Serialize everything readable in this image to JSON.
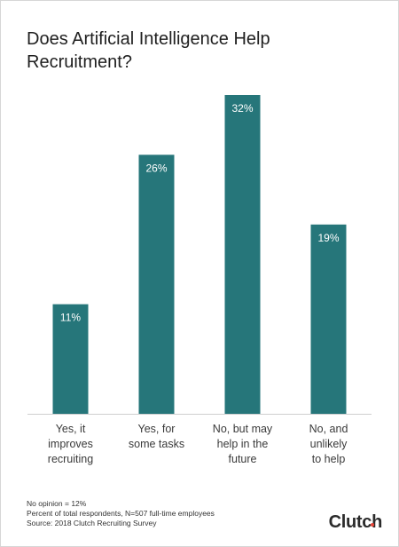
{
  "chart_data": {
    "type": "bar",
    "title": "Does Artificial Intelligence Help Recruitment?",
    "categories": [
      [
        "Yes, it",
        "improves",
        "recruiting"
      ],
      [
        "Yes, for",
        "some tasks"
      ],
      [
        "No, but may",
        "help in the",
        "future"
      ],
      [
        "No, and",
        "unlikely",
        "to help"
      ]
    ],
    "values": [
      11,
      26,
      32,
      19
    ],
    "data_labels": [
      "11%",
      "26%",
      "32%",
      "19%"
    ],
    "ylim": [
      0,
      32
    ],
    "grid": false,
    "bar_color": "#26767a"
  },
  "footnotes": {
    "line1": "No opinion = 12%",
    "line2": "Percent of total respondents, N=507 full-time employees",
    "line3": "Source: 2018 Clutch Recruiting Survey"
  },
  "brand": {
    "name": "Clutch",
    "accent_color": "#e8463a"
  }
}
